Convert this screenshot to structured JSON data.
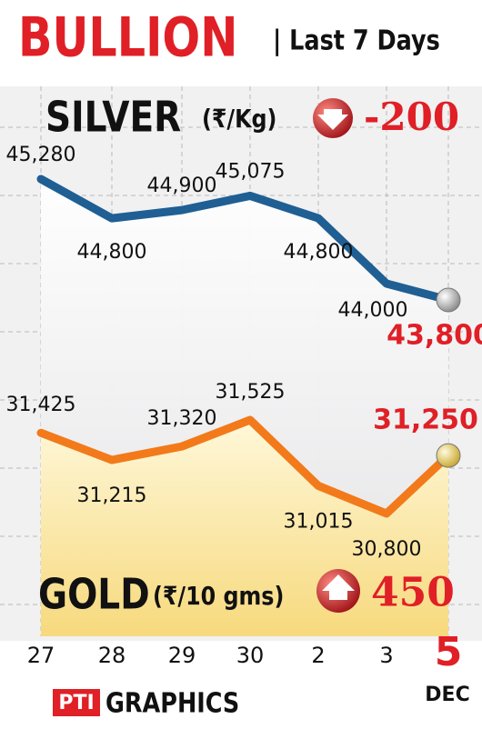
{
  "chart_data": {
    "type": "line",
    "title": "BULLION",
    "subtitle": "| Last 7 Days",
    "categories": [
      "27",
      "28",
      "29",
      "30",
      "2",
      "3",
      "5"
    ],
    "month": "DEC",
    "series": [
      {
        "name": "SILVER",
        "unit": "(₹/Kg)",
        "change": -200,
        "color": "#1f5f93",
        "values": [
          45280,
          44800,
          44900,
          45075,
          44800,
          44000,
          43800
        ],
        "value_labels": [
          "45,280",
          "44,800",
          "44,900",
          "45,075",
          "44,800",
          "44,000",
          "43,800"
        ]
      },
      {
        "name": "GOLD",
        "unit": "(₹/10 gms)",
        "change": 450,
        "color": "#f27a1a",
        "values": [
          31425,
          31215,
          31320,
          31525,
          31015,
          30800,
          31250
        ],
        "value_labels": [
          "31,425",
          "31,215",
          "31,320",
          "31,525",
          "31,015",
          "30,800",
          "31,250"
        ]
      }
    ],
    "source_logo": "PTI",
    "source": "GRAPHICS"
  }
}
